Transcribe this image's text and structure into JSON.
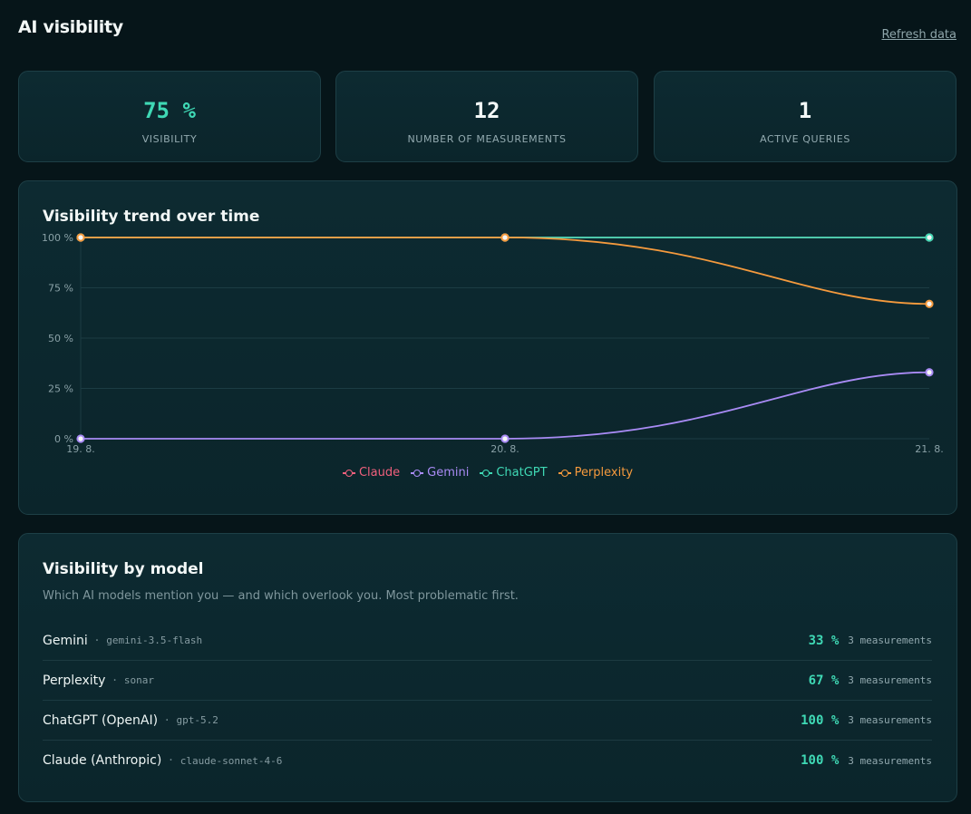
{
  "page": {
    "title": "AI visibility",
    "refresh_label": "Refresh data"
  },
  "stats": [
    {
      "value": "75 %",
      "label": "VISIBILITY"
    },
    {
      "value": "12",
      "label": "NUMBER OF MEASUREMENTS"
    },
    {
      "value": "1",
      "label": "ACTIVE QUERIES"
    }
  ],
  "trend": {
    "title": "Visibility trend over time"
  },
  "chart_data": {
    "type": "line",
    "x": [
      "19. 8.",
      "20. 8.",
      "21. 8."
    ],
    "y_ticks": [
      "0 %",
      "25 %",
      "50 %",
      "75 %",
      "100 %"
    ],
    "ylim": [
      0,
      100
    ],
    "grid": true,
    "legend_position": "bottom",
    "series": [
      {
        "name": "Claude",
        "color": "#f0607d",
        "values": [
          100,
          100,
          100
        ]
      },
      {
        "name": "Gemini",
        "color": "#a98bf5",
        "values": [
          0,
          0,
          33
        ]
      },
      {
        "name": "ChatGPT",
        "color": "#3fd9b5",
        "values": [
          100,
          100,
          100
        ]
      },
      {
        "name": "Perplexity",
        "color": "#f59a3d",
        "values": [
          100,
          100,
          67
        ]
      }
    ]
  },
  "models": {
    "title": "Visibility by model",
    "subtitle": "Which AI models mention you — and which overlook you. Most problematic first.",
    "rows": [
      {
        "name": "Gemini",
        "id": "gemini-3.5-flash",
        "pct": "33 %",
        "count": "3 measurements"
      },
      {
        "name": "Perplexity",
        "id": "sonar",
        "pct": "67 %",
        "count": "3 measurements"
      },
      {
        "name": "ChatGPT (OpenAI)",
        "id": "gpt-5.2",
        "pct": "100 %",
        "count": "3 measurements"
      },
      {
        "name": "Claude (Anthropic)",
        "id": "claude-sonnet-4-6",
        "pct": "100 %",
        "count": "3 measurements"
      }
    ],
    "separator": "·"
  }
}
